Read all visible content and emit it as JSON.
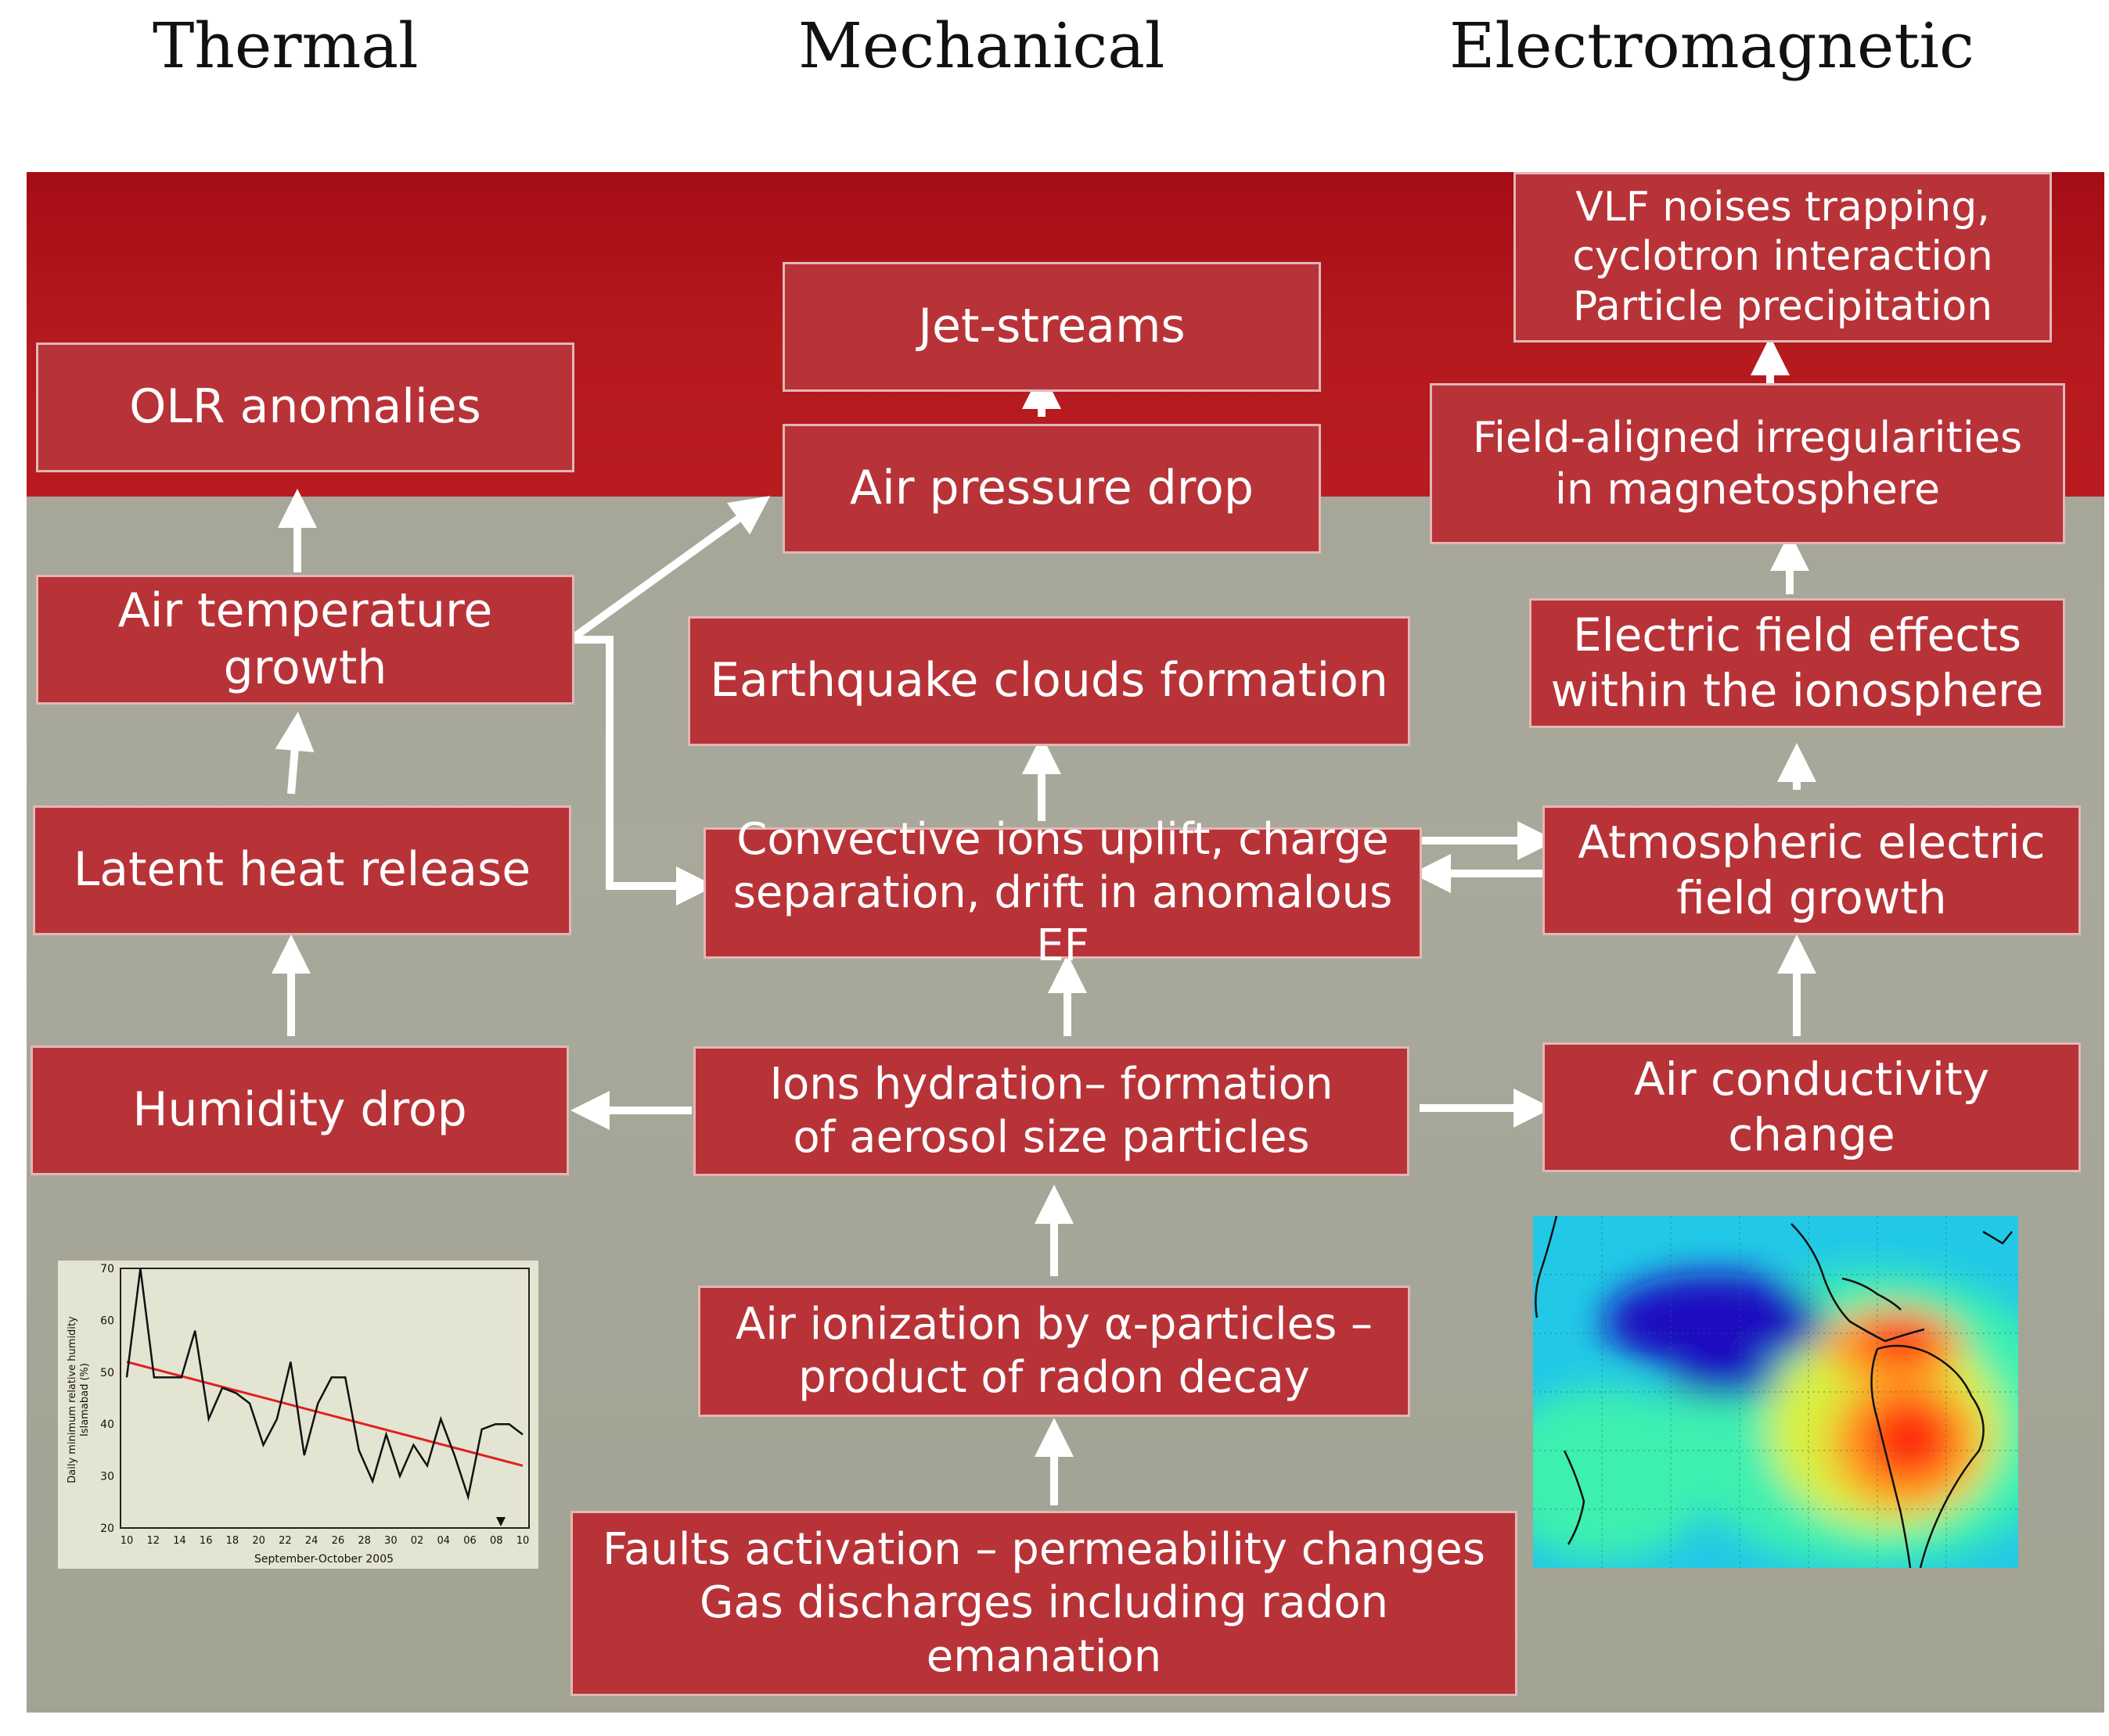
{
  "headers": {
    "thermal": "Thermal",
    "mechanical": "Mechanical",
    "electromagnetic": "Electromagnetic"
  },
  "nodes": {
    "olr": "OLR anomalies",
    "air_temp": "Air temperature growth",
    "latent_heat": "Latent heat release",
    "humidity_drop": "Humidity drop",
    "jet_streams": "Jet-streams",
    "air_pressure": "Air pressure drop",
    "eq_clouds": "Earthquake clouds formation",
    "convective": "Convective ions uplift, charge\nseparation, drift in anomalous EF",
    "ions_hydration": "Ions hydration– formation\nof aerosol size particles",
    "air_ionization": "Air ionization by α-particles –\nproduct of radon decay",
    "faults": "Faults activation – permeability changes\nGas discharges including radon\nemanation",
    "vlf": "VLF noises trapping,\ncyclotron interaction\nParticle precipitation",
    "field_aligned": "Field-aligned irregularities\nin magnetosphere",
    "efield_iono": "Electric field effects\nwithin the ionosphere",
    "atm_efield": "Atmospheric electric\nfield growth",
    "air_conductivity": "Air conductivity change"
  },
  "inset_chart": {
    "ylabel": "Daily minimum relative humidity\nIslamabad (%)",
    "xlabel": "September-October 2005",
    "y_ticks": [
      "70",
      "60",
      "50",
      "40",
      "30",
      "20"
    ],
    "x_ticks": [
      "10",
      "12",
      "14",
      "16",
      "18",
      "20",
      "22",
      "24",
      "26",
      "28",
      "30",
      "02",
      "04",
      "06",
      "08",
      "10"
    ],
    "line_color": "#111111",
    "trend_color": "#e02020",
    "chart_data": {
      "type": "line",
      "xlabel": "September-October 2005",
      "ylabel": "Daily minimum relative humidity Islamabad (%)",
      "ylim": [
        20,
        70
      ],
      "series_values": [
        49,
        70,
        49,
        49,
        49,
        58,
        41,
        47,
        46,
        44,
        36,
        41,
        52,
        34,
        44,
        49,
        49,
        35,
        29,
        38,
        30,
        36,
        32,
        41,
        34,
        26,
        39,
        40,
        40,
        38
      ],
      "trend_values": [
        52,
        32
      ]
    }
  },
  "map_colors": [
    "#1ec8e8",
    "#3df0b0",
    "#d8f040",
    "#ff9a20",
    "#ff2a10",
    "#1a10c0"
  ]
}
